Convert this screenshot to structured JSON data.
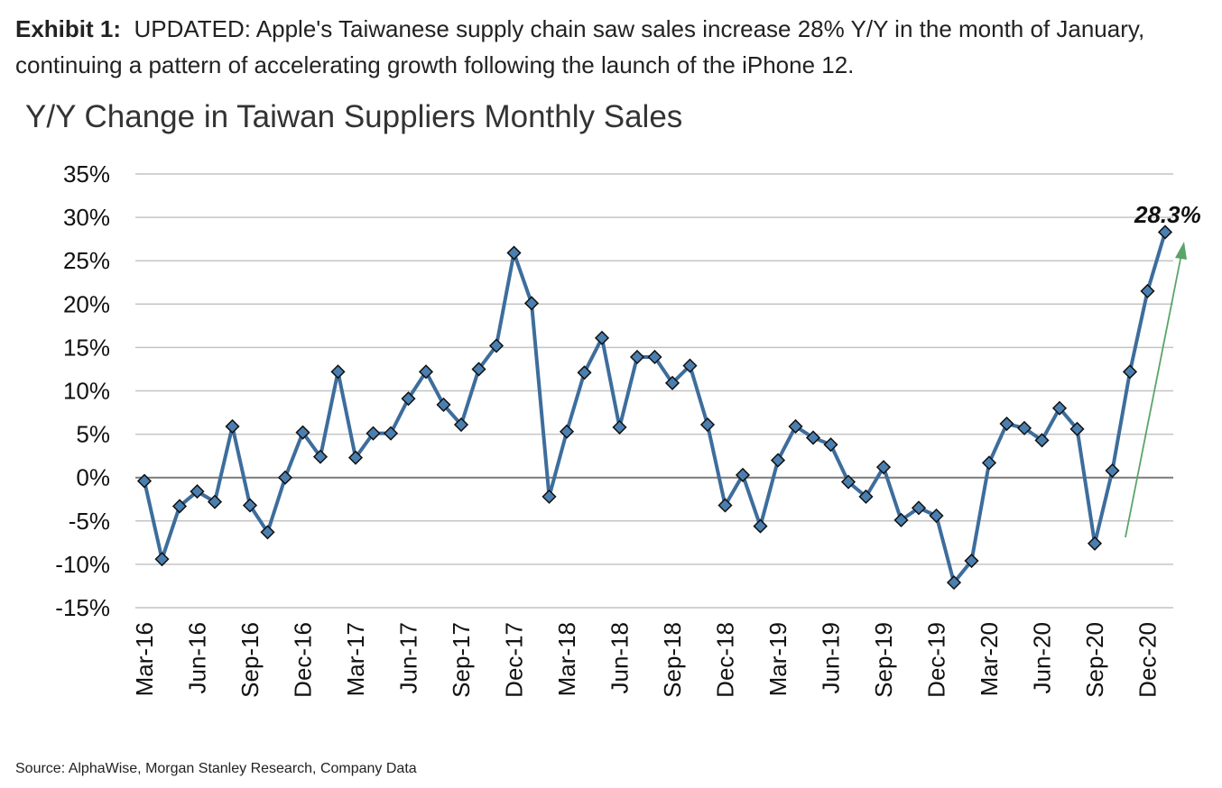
{
  "header": {
    "exhibit_label": "Exhibit 1:",
    "exhibit_text": "UPDATED: Apple's Taiwanese supply chain saw sales increase 28% Y/Y in the month of January, continuing a pattern of accelerating growth following the launch of the iPhone 12."
  },
  "source": "Source: AlphaWise, Morgan Stanley Research, Company Data",
  "chart_data": {
    "type": "line",
    "title": "Y/Y Change in Taiwan Suppliers Monthly Sales",
    "xlabel": "",
    "ylabel": "",
    "ylim": [
      -15,
      35
    ],
    "y_ticks": [
      "35%",
      "30%",
      "25%",
      "20%",
      "15%",
      "10%",
      "5%",
      "0%",
      "-5%",
      "-10%",
      "-15%"
    ],
    "x_tick_labels": [
      "Mar-16",
      "Jun-16",
      "Sep-16",
      "Dec-16",
      "Mar-17",
      "Jun-17",
      "Sep-17",
      "Dec-17",
      "Mar-18",
      "Jun-18",
      "Sep-18",
      "Dec-18",
      "Mar-19",
      "Jun-19",
      "Sep-19",
      "Dec-19",
      "Mar-20",
      "Jun-20",
      "Sep-20",
      "Dec-20"
    ],
    "grid": true,
    "x": [
      "Mar-16",
      "Apr-16",
      "May-16",
      "Jun-16",
      "Jul-16",
      "Aug-16",
      "Sep-16",
      "Oct-16",
      "Nov-16",
      "Dec-16",
      "Jan-17",
      "Feb-17",
      "Mar-17",
      "Apr-17",
      "May-17",
      "Jun-17",
      "Jul-17",
      "Aug-17",
      "Sep-17",
      "Oct-17",
      "Nov-17",
      "Dec-17",
      "Jan-18",
      "Feb-18",
      "Mar-18",
      "Apr-18",
      "May-18",
      "Jun-18",
      "Jul-18",
      "Aug-18",
      "Sep-18",
      "Oct-18",
      "Nov-18",
      "Dec-18",
      "Jan-19",
      "Feb-19",
      "Mar-19",
      "Apr-19",
      "May-19",
      "Jun-19",
      "Jul-19",
      "Aug-19",
      "Sep-19",
      "Oct-19",
      "Nov-19",
      "Dec-19",
      "Jan-20",
      "Feb-20",
      "Mar-20",
      "Apr-20",
      "May-20",
      "Jun-20",
      "Jul-20",
      "Aug-20",
      "Sep-20",
      "Oct-20",
      "Nov-20",
      "Dec-20",
      "Jan-21"
    ],
    "series": [
      {
        "values": [
          -0.4,
          -9.4,
          -3.3,
          -1.6,
          -2.8,
          5.9,
          -3.2,
          -6.3,
          0.0,
          5.2,
          2.4,
          12.2,
          2.3,
          5.1,
          5.1,
          9.1,
          12.2,
          8.4,
          6.1,
          12.5,
          15.2,
          25.9,
          20.1,
          -2.2,
          5.3,
          12.1,
          16.1,
          5.8,
          13.9,
          13.9,
          10.9,
          12.9,
          6.1,
          -3.2,
          0.3,
          -5.6,
          2.0,
          5.9,
          4.6,
          3.8,
          -0.5,
          -2.2,
          1.2,
          -4.9,
          -3.5,
          -4.4,
          -12.1,
          -9.6,
          1.7,
          6.2,
          5.7,
          4.3,
          8.0,
          5.6,
          -7.6,
          0.8,
          12.2,
          21.5,
          28.3
        ],
        "line_color": "#3d6d9c",
        "marker_color": "#4a7fb0",
        "marker": "diamond"
      }
    ],
    "annotation": {
      "text": "28.3%",
      "arrow_color": "#5aa469"
    }
  }
}
